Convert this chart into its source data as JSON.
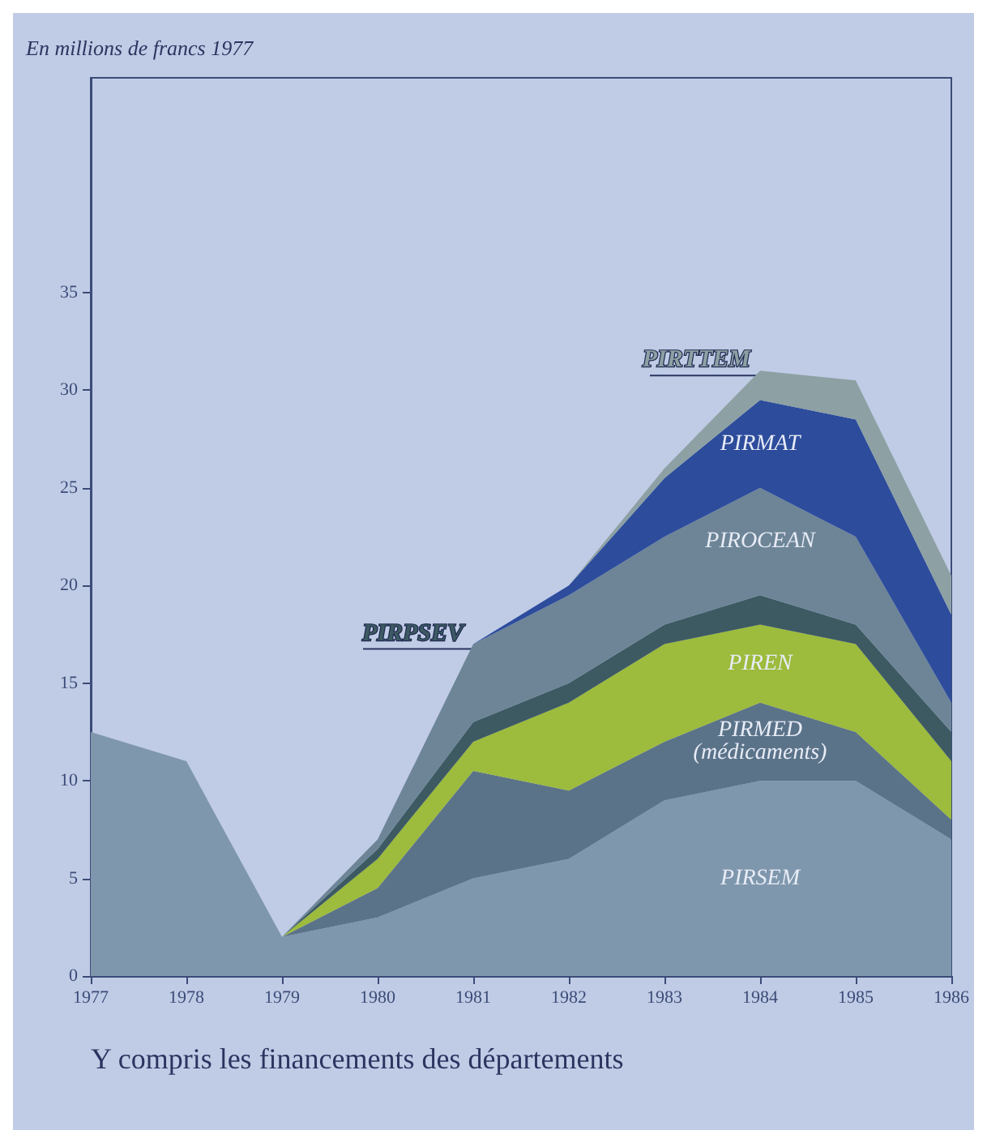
{
  "chart_data": {
    "type": "area",
    "stacked": true,
    "ylabel": "En millions de francs 1977",
    "categories": [
      "1977",
      "1978",
      "1979",
      "1980",
      "1981",
      "1982",
      "1983",
      "1984",
      "1985",
      "1986"
    ],
    "series": [
      {
        "name": "PIRSEM",
        "color": "#7f97ad",
        "values": [
          12.5,
          11,
          2,
          3,
          5,
          6,
          9,
          10,
          10,
          7
        ]
      },
      {
        "name": "PIRMED\n(médicaments)",
        "color": "#5b7389",
        "values": [
          null,
          null,
          0,
          1.5,
          5.5,
          3.5,
          3,
          4,
          2.5,
          1
        ]
      },
      {
        "name": "PIREN",
        "color": "#9dbb3c",
        "values": [
          null,
          null,
          0,
          1.5,
          1.5,
          4.5,
          5,
          4,
          4.5,
          3
        ]
      },
      {
        "name": "PIRPSEV",
        "color": "#3d5a62",
        "values": [
          null,
          null,
          0,
          0.5,
          1,
          1,
          1,
          1.5,
          1,
          1.5
        ]
      },
      {
        "name": "PIROCEAN",
        "color": "#6d8597",
        "values": [
          null,
          null,
          0,
          0.5,
          4,
          4.5,
          4.5,
          5.5,
          4.5,
          1.5
        ]
      },
      {
        "name": "PIRMAT",
        "color": "#2d4c9c",
        "values": [
          null,
          null,
          0,
          0,
          0,
          0.5,
          3,
          4.5,
          6,
          4.5
        ]
      },
      {
        "name": "PIRTTEM",
        "color": "#8da0a3",
        "values": [
          null,
          null,
          0,
          0,
          0,
          0,
          0.5,
          1.5,
          2,
          2
        ]
      }
    ],
    "ylim": [
      0,
      46
    ],
    "yticks": [
      0,
      5,
      10,
      15,
      20,
      25,
      30,
      35
    ],
    "grid": false,
    "annotations": [
      "Y compris les financements des départements"
    ]
  }
}
